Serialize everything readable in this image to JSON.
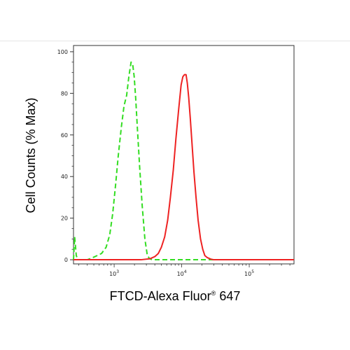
{
  "chart_data": {
    "type": "line",
    "xlabel_main": "FTCD-Alexa Fluor",
    "xlabel_sup": "®",
    "xlabel_tail": " 647",
    "ylabel": "Cell Counts (% Max)",
    "xscale": "log",
    "xlim": [
      250,
      460000
    ],
    "ylim": [
      -2,
      103
    ],
    "x_major_ticks": [
      {
        "value": 1000,
        "base": "10",
        "exp": "3"
      },
      {
        "value": 10000,
        "base": "10",
        "exp": "4"
      },
      {
        "value": 100000,
        "base": "10",
        "exp": "5"
      }
    ],
    "y_ticks": [
      {
        "value": 0,
        "label": "0"
      },
      {
        "value": 20,
        "label": "20"
      },
      {
        "value": 40,
        "label": "40"
      },
      {
        "value": 60,
        "label": "60"
      },
      {
        "value": 80,
        "label": "80"
      },
      {
        "value": 100,
        "label": "100"
      }
    ],
    "grid": false,
    "legend": "none",
    "series": [
      {
        "color": "#33dd22",
        "style": "dashed",
        "x": [
          250,
          260,
          275,
          290,
          310,
          340,
          400,
          480,
          560,
          650,
          760,
          860,
          950,
          1050,
          1150,
          1280,
          1400,
          1530,
          1650,
          1780,
          1880,
          1980,
          2080,
          2200,
          2380,
          2600,
          2850,
          3100,
          3350,
          3700,
          4200,
          5000,
          7000,
          10000,
          20000,
          50000,
          200000,
          460000
        ],
        "y": [
          0,
          11,
          2,
          0,
          0,
          0,
          0,
          1,
          2,
          3,
          6,
          12,
          22,
          36,
          50,
          64,
          74,
          79,
          88,
          95,
          94,
          88,
          78,
          64,
          45,
          26,
          10,
          2,
          0.5,
          0,
          0,
          0,
          0,
          0,
          0,
          0,
          0,
          0
        ]
      },
      {
        "color": "#ee2222",
        "style": "solid",
        "x": [
          250,
          1000,
          2500,
          3400,
          4000,
          4500,
          5000,
          5600,
          6200,
          6800,
          7500,
          8200,
          9000,
          9800,
          10400,
          11000,
          11600,
          12100,
          12700,
          13400,
          14200,
          15200,
          16300,
          17500,
          19000,
          20500,
          22000,
          24000,
          27000,
          30000,
          35000,
          50000,
          100000,
          460000
        ],
        "y": [
          0,
          0,
          0,
          0.5,
          1.5,
          3,
          6,
          11,
          19,
          30,
          43,
          58,
          72,
          84,
          88,
          89,
          89,
          85,
          78,
          68,
          56,
          42,
          30,
          19,
          10,
          5,
          2,
          1,
          0.3,
          0,
          0,
          0,
          0,
          0
        ]
      }
    ]
  }
}
